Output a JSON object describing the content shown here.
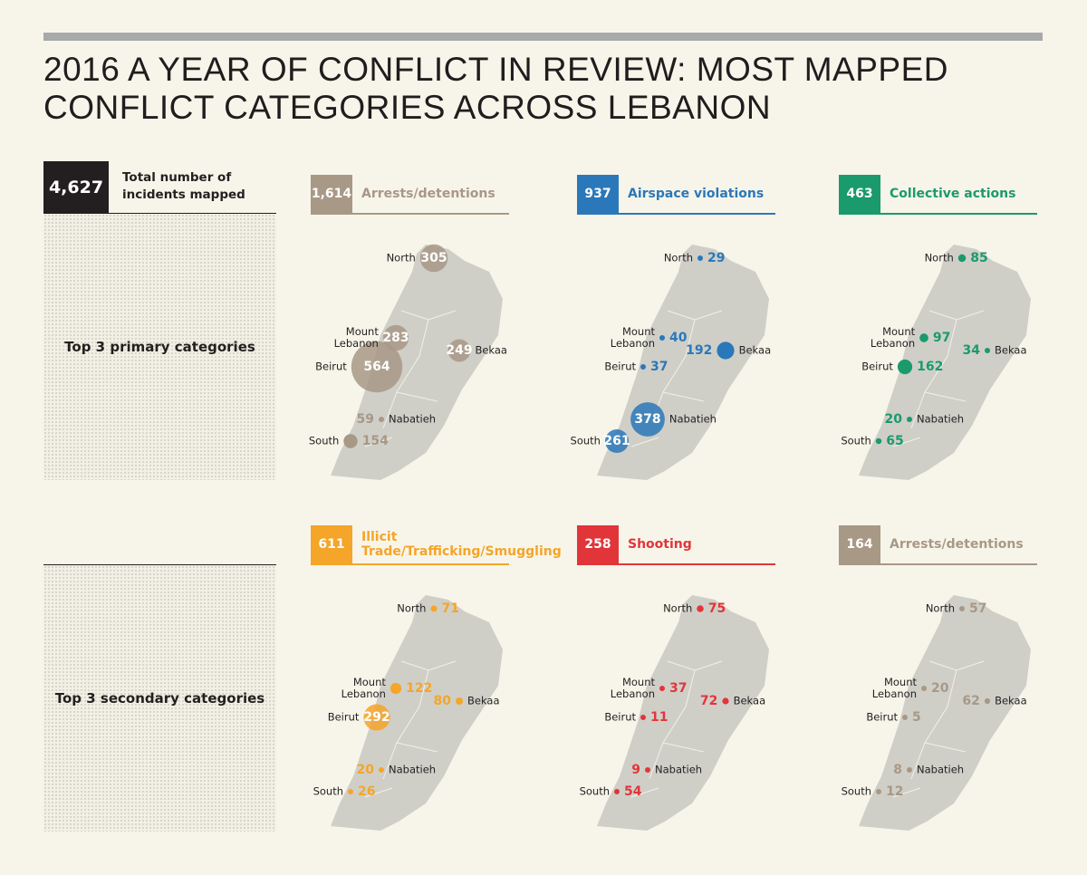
{
  "header": {
    "title": "2016 A YEAR OF CONFLICT IN REVIEW: MOST MAPPED CONFLICT CATEGORIES ACROSS LEBANON"
  },
  "total": {
    "count": "4,627",
    "label": "Total number of incidents mapped"
  },
  "row_labels": [
    "Top 3 primary categories",
    "Top 3 secondary categories"
  ],
  "regions": [
    "North",
    "Mount Lebanon",
    "Beirut",
    "Bekaa",
    "Nabatieh",
    "South"
  ],
  "panels": [
    {
      "count": "1,614",
      "category": "Arrests/detentions",
      "color": "#a89886",
      "values": [
        305,
        283,
        564,
        249,
        59,
        154
      ]
    },
    {
      "count": "937",
      "category": "Airspace violations",
      "color": "#2a78b9",
      "values": [
        29,
        40,
        37,
        192,
        378,
        261
      ]
    },
    {
      "count": "463",
      "category": "Collective actions",
      "color": "#1b9a6d",
      "values": [
        85,
        97,
        162,
        34,
        20,
        65
      ]
    },
    {
      "count": "611",
      "category": "Illicit Trade/Trafficking/Smuggling",
      "color": "#f4a52a",
      "values": [
        71,
        122,
        292,
        80,
        20,
        26
      ]
    },
    {
      "count": "258",
      "category": "Shooting",
      "color": "#e2353a",
      "values": [
        75,
        37,
        11,
        72,
        9,
        54
      ]
    },
    {
      "count": "164",
      "category": "Arrests/detentions",
      "color": "#a89886",
      "values": [
        57,
        20,
        5,
        62,
        8,
        12
      ]
    }
  ]
}
